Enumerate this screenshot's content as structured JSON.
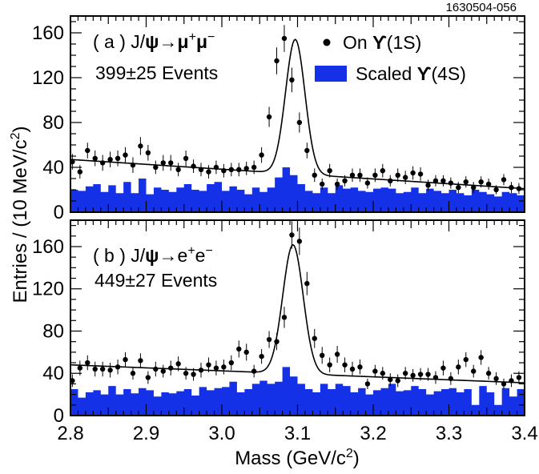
{
  "figure_ref": "1630504-056",
  "colors": {
    "background_fill": "#1431e8",
    "data": "#000000",
    "fit": "#000000"
  },
  "chart_data": [
    {
      "type": "scatter",
      "panel": "a",
      "label_prefix": "( a ) J/",
      "label_psi": "ψ",
      "label_arrow": "→",
      "label_mu1": "μ",
      "label_sup1": "+",
      "label_mu2": "μ",
      "label_sup2": "−",
      "events": "399±25 Events",
      "legend": {
        "on_prefix": "On ",
        "on_upsilon": "ϒ",
        "on_suffix": "(1S)",
        "scaled_prefix": "Scaled ",
        "scaled_upsilon": "ϒ",
        "scaled_suffix": "(4S)"
      },
      "xlim": [
        2.8,
        3.4
      ],
      "ylim": [
        0,
        175
      ],
      "yticks": [
        0,
        40,
        80,
        120,
        160
      ],
      "fit_background": {
        "y_at_2_8": 47,
        "y_at_3_4": 21
      },
      "fit_peak": {
        "mean": 3.097,
        "amplitude": 120,
        "sigma": 0.0128
      },
      "data_x": [
        2.8025,
        2.8125,
        2.8225,
        2.8325,
        2.8425,
        2.8525,
        2.8625,
        2.8725,
        2.8825,
        2.8925,
        2.9025,
        2.9125,
        2.9225,
        2.9325,
        2.9425,
        2.9525,
        2.9625,
        2.9725,
        2.9825,
        2.9925,
        3.0025,
        3.0125,
        3.0225,
        3.0325,
        3.0425,
        3.0525,
        3.0625,
        3.0725,
        3.0825,
        3.0925,
        3.1025,
        3.1125,
        3.1225,
        3.1325,
        3.1425,
        3.1525,
        3.1625,
        3.1725,
        3.1825,
        3.1925,
        3.2025,
        3.2125,
        3.2225,
        3.2325,
        3.2425,
        3.2525,
        3.2625,
        3.2725,
        3.2825,
        3.2925,
        3.3025,
        3.3125,
        3.3225,
        3.3325,
        3.3425,
        3.3525,
        3.3625,
        3.3725,
        3.3825,
        3.3925
      ],
      "data_y": [
        45,
        36,
        55,
        48,
        44,
        47,
        48,
        51,
        42,
        59,
        53,
        40,
        44,
        44,
        38,
        48,
        41,
        38,
        36,
        40,
        37,
        38,
        38,
        39,
        40,
        51,
        85,
        135,
        155,
        118,
        80,
        55,
        33,
        25,
        37,
        25,
        28,
        33,
        33,
        26,
        33,
        37,
        28,
        33,
        31,
        35,
        34,
        24,
        28,
        28,
        26,
        22,
        27,
        22,
        27,
        25,
        20,
        29,
        22,
        21
      ],
      "data_err": [
        7,
        6,
        7,
        7,
        7,
        7,
        7,
        7,
        7,
        8,
        7,
        6,
        7,
        7,
        6,
        7,
        6,
        6,
        6,
        6,
        6,
        6,
        6,
        6,
        6,
        7,
        9,
        12,
        12,
        11,
        9,
        7,
        6,
        5,
        6,
        5,
        5,
        6,
        6,
        5,
        6,
        6,
        5,
        6,
        6,
        6,
        6,
        5,
        5,
        5,
        5,
        5,
        5,
        5,
        5,
        5,
        4,
        5,
        5,
        5
      ],
      "bg_hist": [
        20,
        19,
        23,
        25,
        18,
        24,
        17,
        27,
        17,
        30,
        16,
        22,
        20,
        18,
        22,
        25,
        20,
        19,
        25,
        27,
        19,
        23,
        20,
        16,
        22,
        18,
        22,
        31,
        40,
        33,
        25,
        19,
        17,
        22,
        17,
        24,
        21,
        22,
        19,
        18,
        21,
        22,
        21,
        17,
        18,
        22,
        17,
        21,
        19,
        17,
        20,
        17,
        15,
        20,
        18,
        16,
        14,
        18,
        17,
        15
      ]
    },
    {
      "type": "scatter",
      "panel": "b",
      "label_prefix": "( b ) J/",
      "label_psi": "ψ",
      "label_arrow": "→",
      "label_e1": "e",
      "label_sup1": "+",
      "label_e2": "e",
      "label_sup2": "−",
      "events": "449±27 Events",
      "xlim": [
        2.8,
        3.4
      ],
      "ylim": [
        0,
        185
      ],
      "yticks": [
        0,
        40,
        80,
        120,
        160
      ],
      "xticks": [
        "2.8",
        "2.9",
        "3.0",
        "3.1",
        "3.2",
        "3.3",
        "3.4"
      ],
      "fit_background": {
        "y_at_2_8": 48,
        "y_at_3_4": 31
      },
      "fit_peak": {
        "mean": 3.094,
        "amplitude": 122,
        "sigma": 0.0135
      },
      "data_x": [
        2.8025,
        2.8125,
        2.8225,
        2.8325,
        2.8425,
        2.8525,
        2.8625,
        2.8725,
        2.8825,
        2.8925,
        2.9025,
        2.9125,
        2.9225,
        2.9325,
        2.9425,
        2.9525,
        2.9625,
        2.9725,
        2.9825,
        2.9925,
        3.0025,
        3.0125,
        3.0225,
        3.0325,
        3.0425,
        3.0525,
        3.0625,
        3.0725,
        3.0825,
        3.0925,
        3.1025,
        3.1125,
        3.1225,
        3.1325,
        3.1425,
        3.1525,
        3.1625,
        3.1725,
        3.1825,
        3.1925,
        3.2025,
        3.2125,
        3.2225,
        3.2325,
        3.2425,
        3.2525,
        3.2625,
        3.2725,
        3.2825,
        3.2925,
        3.3025,
        3.3125,
        3.3225,
        3.3325,
        3.3425,
        3.3525,
        3.3625,
        3.3725,
        3.3825,
        3.3925
      ],
      "data_y": [
        33,
        45,
        50,
        44,
        44,
        43,
        46,
        53,
        40,
        52,
        36,
        44,
        42,
        45,
        49,
        40,
        39,
        43,
        48,
        45,
        46,
        50,
        63,
        60,
        42,
        56,
        72,
        70,
        93,
        171,
        165,
        125,
        73,
        57,
        48,
        58,
        48,
        44,
        46,
        30,
        42,
        40,
        34,
        33,
        40,
        38,
        39,
        39,
        36,
        45,
        35,
        46,
        53,
        42,
        55,
        40,
        35,
        30,
        33,
        36
      ],
      "data_err": [
        6,
        7,
        7,
        7,
        7,
        7,
        7,
        7,
        6,
        7,
        6,
        7,
        6,
        7,
        7,
        6,
        6,
        7,
        7,
        7,
        7,
        7,
        8,
        8,
        6,
        7,
        8,
        8,
        10,
        13,
        13,
        11,
        9,
        8,
        7,
        8,
        7,
        7,
        7,
        5,
        6,
        6,
        6,
        6,
        6,
        6,
        6,
        6,
        6,
        7,
        6,
        7,
        7,
        6,
        7,
        6,
        6,
        5,
        6,
        6
      ],
      "bg_hist": [
        25,
        17,
        22,
        24,
        20,
        28,
        20,
        25,
        21,
        26,
        24,
        18,
        22,
        21,
        23,
        25,
        19,
        27,
        24,
        26,
        27,
        32,
        22,
        25,
        30,
        33,
        30,
        32,
        46,
        37,
        30,
        25,
        22,
        30,
        25,
        30,
        28,
        22,
        26,
        20,
        24,
        26,
        30,
        23,
        24,
        28,
        25,
        20,
        23,
        25,
        26,
        22,
        25,
        10,
        28,
        22,
        10,
        26,
        18,
        25
      ]
    }
  ],
  "axes": {
    "xlabel_prefix": "Mass (GeV/c",
    "xlabel_sup": "2",
    "xlabel_suffix": ")",
    "ylabel_prefix": "Entries / (10 MeV/c",
    "ylabel_sup": "2",
    "ylabel_suffix": ")"
  }
}
